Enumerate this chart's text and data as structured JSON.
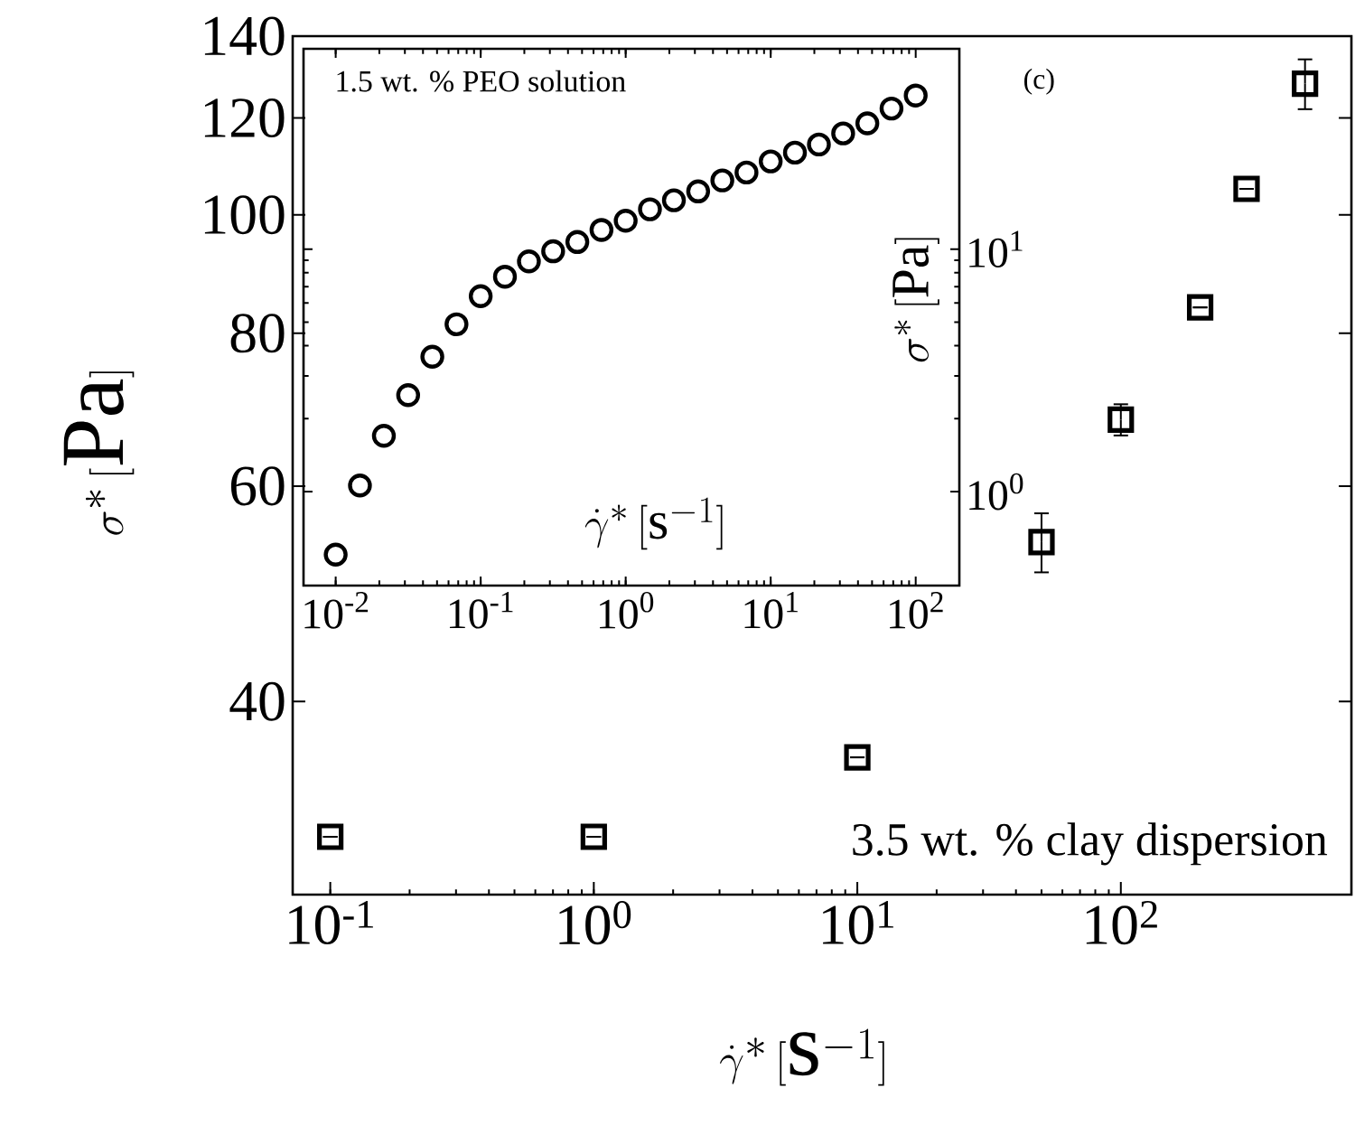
{
  "chart_data": [
    {
      "type": "scatter",
      "xlabel": "\\dot{\\gamma}^{*}\\,[\\mathrm{s}^{-1}]",
      "ylabel": "\\sigma^{*}\\,[\\mathrm{Pa}]",
      "log": "xy",
      "marker": "square",
      "color": "#000000",
      "xlim": [
        0.072,
        750
      ],
      "ylim": [
        27.8,
        140
      ],
      "xticks": [
        {
          "value": 0.1,
          "label": "10$^{-1}$"
        },
        {
          "value": 1,
          "label": "10$^{0}$"
        },
        {
          "value": 10,
          "label": "10$^{1}$"
        },
        {
          "value": 100,
          "label": "10$^{2}$"
        }
      ],
      "yticks": [
        40,
        60,
        80,
        100,
        120,
        140
      ],
      "x": [
        0.1,
        1,
        10,
        50,
        100,
        200,
        300,
        500
      ],
      "values": [
        31,
        31,
        36,
        54,
        68,
        84,
        105,
        128
      ],
      "errors": [
        null,
        null,
        null,
        [
          51,
          57
        ],
        [
          66,
          70
        ],
        null,
        null,
        [
          122,
          134
        ]
      ],
      "annotations": [
        "(c)",
        "3.5 wt. % clay dispersion"
      ]
    },
    {
      "type": "scatter",
      "xlabel": "\\dot{\\gamma}^{*}\\,[\\mathrm{s}^{-1}]",
      "ylabel": "\\sigma^{*}\\,[\\mathrm{Pa}]",
      "log": "xy",
      "marker": "circle",
      "color": "#000000",
      "xlim": [
        0.006,
        200
      ],
      "ylim": [
        0.41,
        67
      ],
      "xticks": [
        {
          "value": 0.01,
          "label": "10$^{-2}$"
        },
        {
          "value": 0.1,
          "label": "10$^{-1}$"
        },
        {
          "value": 1,
          "label": "10$^{0}$"
        },
        {
          "value": 10,
          "label": "10$^{1}$"
        },
        {
          "value": 100,
          "label": "10$^{2}$"
        }
      ],
      "yticks": [
        {
          "value": 1,
          "label": "10$^{0}$"
        },
        {
          "value": 10,
          "label": "10$^{1}$"
        }
      ],
      "x": [
        0.01,
        0.0147,
        0.0215,
        0.0316,
        0.0464,
        0.0681,
        0.1,
        0.147,
        0.215,
        0.316,
        0.464,
        0.681,
        1,
        1.47,
        2.15,
        3.16,
        4.64,
        6.81,
        10,
        14.7,
        21.5,
        31.6,
        46.4,
        68.1,
        100
      ],
      "values": [
        0.55,
        1.06,
        1.7,
        2.5,
        3.6,
        4.9,
        6.4,
        7.7,
        8.9,
        9.8,
        10.7,
        12,
        13.1,
        14.6,
        15.9,
        17.3,
        19.2,
        20.7,
        23,
        25,
        27,
        30,
        33,
        38,
        43
      ],
      "annotations": [
        "1.5 wt. % PEO solution"
      ]
    }
  ]
}
